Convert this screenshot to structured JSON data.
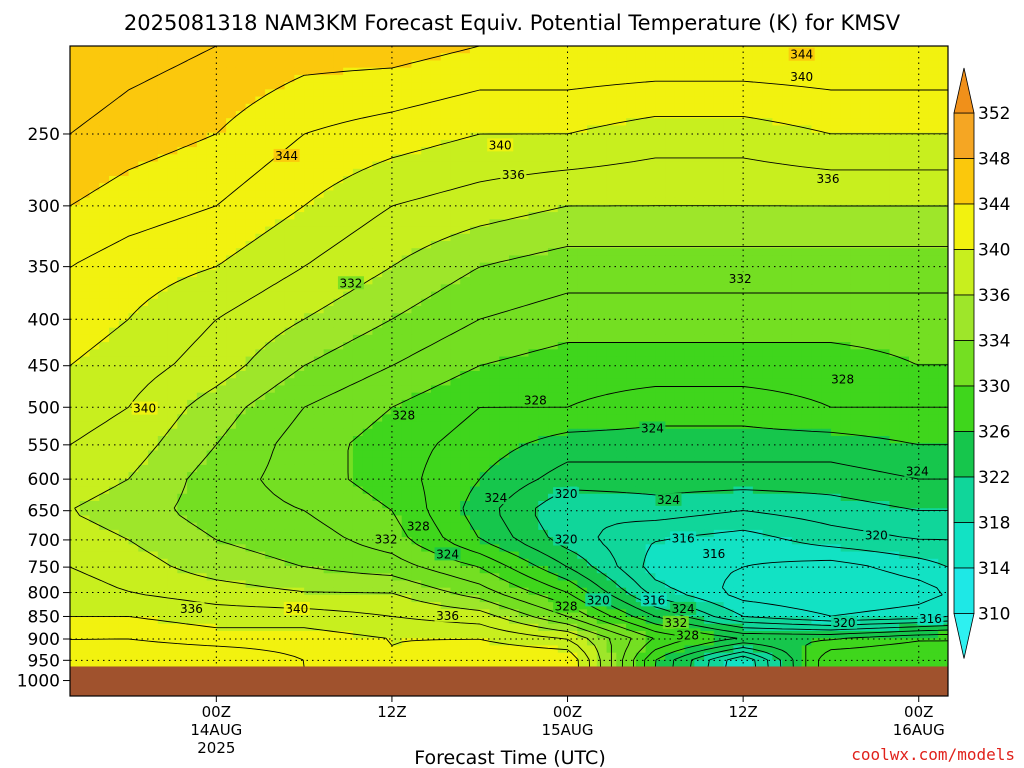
{
  "chart_data": {
    "type": "heatmap",
    "title": "2025081318 NAM3KM Forecast Equiv. Potential Temperature (K) for KMSV",
    "xlabel": "Forecast Time (UTC)",
    "ylabel": "",
    "y_axis": {
      "scale": "log",
      "reversed": true,
      "ticks": [
        250,
        300,
        350,
        400,
        450,
        500,
        550,
        600,
        650,
        700,
        750,
        800,
        850,
        900,
        950,
        1000
      ],
      "range": [
        200,
        1040
      ]
    },
    "x_axis": {
      "range_hours": [
        -4,
        56
      ],
      "ticks": [
        {
          "hour": 6,
          "label": "00Z",
          "sub1": "14AUG",
          "sub2": "2025"
        },
        {
          "hour": 18,
          "label": "12Z",
          "sub1": "",
          "sub2": ""
        },
        {
          "hour": 30,
          "label": "00Z",
          "sub1": "15AUG",
          "sub2": ""
        },
        {
          "hour": 42,
          "label": "12Z",
          "sub1": "",
          "sub2": ""
        },
        {
          "hour": 54,
          "label": "00Z",
          "sub1": "16AUG",
          "sub2": ""
        }
      ]
    },
    "colorbar": {
      "levels": [
        352,
        348,
        344,
        340,
        336,
        334,
        330,
        326,
        322,
        318,
        314,
        310
      ],
      "bins": [
        {
          "from": 348,
          "to": 352,
          "color": "#f5a623"
        },
        {
          "from": 344,
          "to": 348,
          "color": "#fbc80c"
        },
        {
          "from": 340,
          "to": 344,
          "color": "#f2f20f"
        },
        {
          "from": 336,
          "to": 340,
          "color": "#c8ef1e"
        },
        {
          "from": 334,
          "to": 336,
          "color": "#9ee62a"
        },
        {
          "from": 330,
          "to": 334,
          "color": "#74df22"
        },
        {
          "from": 326,
          "to": 330,
          "color": "#3fd61c"
        },
        {
          "from": 322,
          "to": 326,
          "color": "#16c64c"
        },
        {
          "from": 318,
          "to": 322,
          "color": "#10d69a"
        },
        {
          "from": 314,
          "to": 318,
          "color": "#12e2c4"
        },
        {
          "from": 310,
          "to": 314,
          "color": "#1ee8e6"
        }
      ],
      "over_color": "#f0901a",
      "under_color": "#2ef0f0"
    },
    "ground_color": "#a0522d",
    "ground_pressure": 965,
    "profiles": [
      {
        "hour": -4,
        "p": [
          200,
          250,
          300,
          350,
          400,
          450,
          500,
          550,
          600,
          650,
          700,
          750,
          800,
          850,
          900,
          950
        ],
        "v": [
          348,
          346,
          344,
          342,
          341,
          340,
          339,
          338,
          337,
          336,
          337,
          338,
          339,
          340,
          342,
          343
        ]
      },
      {
        "hour": 0,
        "p": [
          200,
          250,
          300,
          350,
          400,
          450,
          500,
          550,
          600,
          650,
          700,
          750,
          800,
          850,
          900,
          950
        ],
        "v": [
          347,
          345,
          343,
          341,
          340,
          339,
          338,
          337,
          336,
          335,
          336,
          337,
          338,
          340,
          342,
          344
        ]
      },
      {
        "hour": 6,
        "p": [
          200,
          250,
          300,
          350,
          400,
          450,
          500,
          550,
          600,
          650,
          700,
          750,
          800,
          850,
          900,
          950
        ],
        "v": [
          346,
          344,
          342,
          340,
          338,
          337,
          335,
          334,
          333,
          333,
          334,
          335,
          337,
          339,
          341,
          344
        ]
      },
      {
        "hour": 12,
        "p": [
          200,
          250,
          300,
          350,
          400,
          450,
          500,
          550,
          600,
          650,
          700,
          750,
          800,
          850,
          900,
          950
        ],
        "v": [
          345,
          342,
          340,
          338,
          336,
          334,
          332,
          331,
          331,
          332,
          333,
          334,
          336,
          339,
          341,
          342
        ]
      },
      {
        "hour": 18,
        "p": [
          200,
          250,
          300,
          350,
          400,
          450,
          500,
          550,
          600,
          650,
          700,
          750,
          800,
          850,
          900,
          950
        ],
        "v": [
          345,
          341,
          338,
          336,
          334,
          332,
          330,
          329,
          329,
          330,
          331,
          333,
          336,
          338,
          340,
          340
        ]
      },
      {
        "hour": 24,
        "p": [
          200,
          250,
          300,
          350,
          400,
          450,
          500,
          550,
          600,
          650,
          700,
          750,
          800,
          850,
          900,
          950
        ],
        "v": [
          344,
          340,
          337,
          334,
          332,
          330,
          328,
          327,
          326,
          325,
          326,
          330,
          333,
          337,
          340,
          342
        ]
      },
      {
        "hour": 30,
        "p": [
          200,
          250,
          300,
          350,
          400,
          450,
          500,
          550,
          600,
          650,
          700,
          750,
          800,
          850,
          900,
          950
        ],
        "v": [
          344,
          340,
          336,
          333,
          331,
          329,
          328,
          325,
          323,
          320,
          321,
          324,
          328,
          332,
          338,
          342
        ]
      },
      {
        "hour": 36,
        "p": [
          200,
          250,
          300,
          350,
          400,
          450,
          500,
          550,
          600,
          650,
          700,
          750,
          800,
          850,
          900,
          950
        ],
        "v": [
          344,
          339,
          336,
          333,
          331,
          329,
          327,
          325,
          323,
          321,
          318,
          317,
          319,
          324,
          330,
          326
        ]
      },
      {
        "hour": 42,
        "p": [
          200,
          250,
          300,
          350,
          400,
          450,
          500,
          550,
          600,
          650,
          700,
          750,
          800,
          850,
          900,
          950
        ],
        "v": [
          344,
          339,
          336,
          333,
          331,
          329,
          327,
          325,
          323,
          320,
          317,
          316,
          315,
          318,
          326,
          316
        ]
      },
      {
        "hour": 48,
        "p": [
          200,
          250,
          300,
          350,
          400,
          450,
          500,
          550,
          600,
          650,
          700,
          750,
          800,
          850,
          900,
          950
        ],
        "v": [
          344,
          340,
          336,
          333,
          331,
          329,
          328,
          325,
          323,
          321,
          319,
          315,
          314,
          316,
          326,
          330
        ]
      },
      {
        "hour": 54,
        "p": [
          200,
          250,
          300,
          350,
          400,
          450,
          500,
          550,
          600,
          650,
          700,
          750,
          800,
          850,
          900,
          950
        ],
        "v": [
          344,
          340,
          336,
          333,
          331,
          330,
          328,
          326,
          324,
          322,
          320,
          317,
          315,
          317,
          328,
          330
        ]
      },
      {
        "hour": 56,
        "p": [
          200,
          250,
          300,
          350,
          400,
          450,
          500,
          550,
          600,
          650,
          700,
          750,
          800,
          850,
          900,
          950
        ],
        "v": [
          344,
          340,
          336,
          333,
          331,
          330,
          328,
          326,
          324,
          322,
          320,
          318,
          316,
          318,
          328,
          330
        ]
      }
    ],
    "contour_labels": [
      {
        "text": "344",
        "hour": 10.8,
        "p": 265
      },
      {
        "text": "344",
        "hour": 46.0,
        "p": 205
      },
      {
        "text": "340",
        "hour": 46.0,
        "p": 217
      },
      {
        "text": "340",
        "hour": 25.4,
        "p": 258
      },
      {
        "text": "336",
        "hour": 26.3,
        "p": 278
      },
      {
        "text": "336",
        "hour": 47.8,
        "p": 281
      },
      {
        "text": "332",
        "hour": 15.2,
        "p": 366
      },
      {
        "text": "332",
        "hour": 41.8,
        "p": 362
      },
      {
        "text": "340",
        "hour": 1.1,
        "p": 503
      },
      {
        "text": "328",
        "hour": 18.8,
        "p": 512
      },
      {
        "text": "328",
        "hour": 27.8,
        "p": 493
      },
      {
        "text": "328",
        "hour": 48.8,
        "p": 467
      },
      {
        "text": "324",
        "hour": 35.8,
        "p": 529
      },
      {
        "text": "324",
        "hour": 53.9,
        "p": 590
      },
      {
        "text": "324",
        "hour": 25.1,
        "p": 631
      },
      {
        "text": "320",
        "hour": 29.9,
        "p": 625
      },
      {
        "text": "324",
        "hour": 36.9,
        "p": 634
      },
      {
        "text": "328",
        "hour": 19.8,
        "p": 678
      },
      {
        "text": "332",
        "hour": 17.6,
        "p": 701
      },
      {
        "text": "320",
        "hour": 29.9,
        "p": 701
      },
      {
        "text": "316",
        "hour": 37.9,
        "p": 699
      },
      {
        "text": "320",
        "hour": 51.1,
        "p": 694
      },
      {
        "text": "324",
        "hour": 21.8,
        "p": 728
      },
      {
        "text": "316",
        "hour": 40.0,
        "p": 727
      },
      {
        "text": "336",
        "hour": 4.3,
        "p": 836
      },
      {
        "text": "340",
        "hour": 11.5,
        "p": 836
      },
      {
        "text": "336",
        "hour": 21.8,
        "p": 851
      },
      {
        "text": "328",
        "hour": 29.9,
        "p": 831
      },
      {
        "text": "320",
        "hour": 32.1,
        "p": 818
      },
      {
        "text": "316",
        "hour": 35.9,
        "p": 818
      },
      {
        "text": "324",
        "hour": 37.9,
        "p": 836
      },
      {
        "text": "332",
        "hour": 37.4,
        "p": 866
      },
      {
        "text": "328",
        "hour": 38.2,
        "p": 894
      },
      {
        "text": "320",
        "hour": 48.9,
        "p": 866
      },
      {
        "text": "316",
        "hour": 54.8,
        "p": 858
      }
    ]
  },
  "footer": {
    "credit": "coolwx.com/models"
  }
}
